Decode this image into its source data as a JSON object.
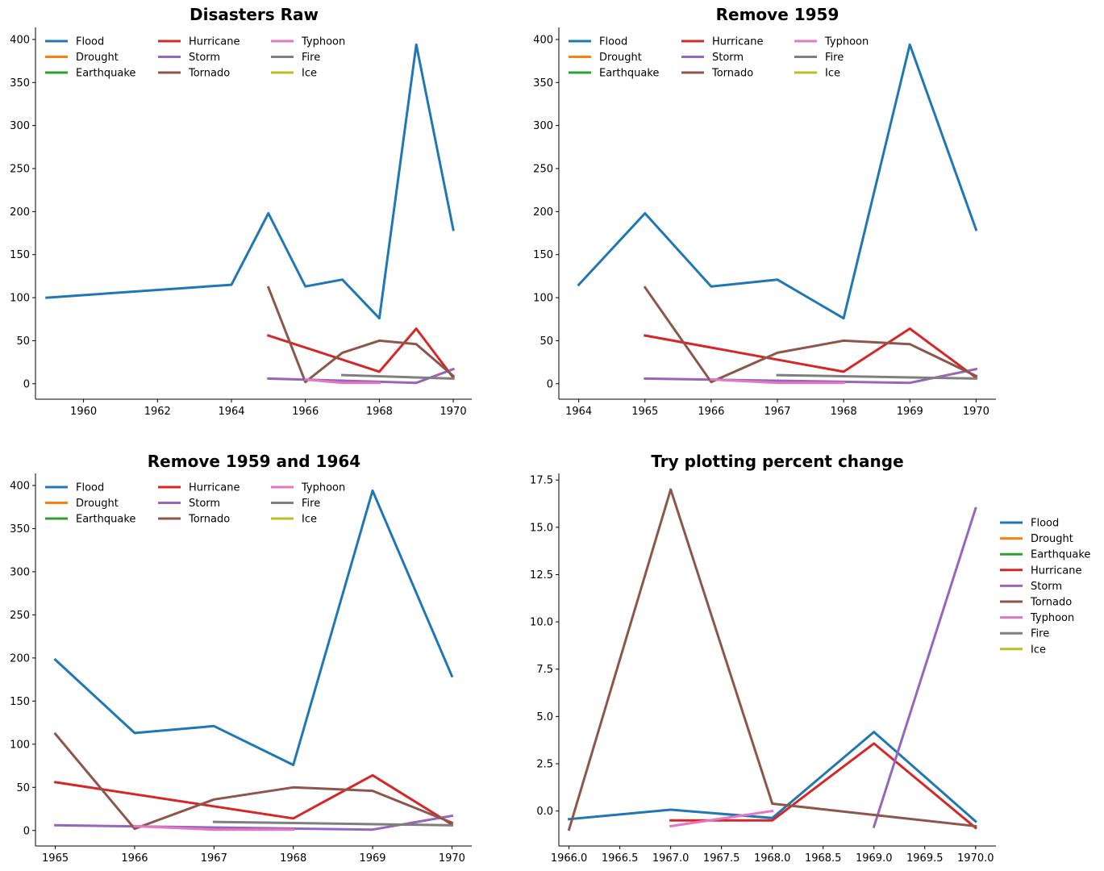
{
  "colors": {
    "Flood": "#1f77b4",
    "Drought": "#ff7f0e",
    "Earthquake": "#2ca02c",
    "Hurricane": "#d62728",
    "Storm": "#9467bd",
    "Tornado": "#8c564b",
    "Typhoon": "#e377c2",
    "Fire": "#7f7f7f",
    "Ice": "#bcbd22"
  },
  "chart_data": [
    {
      "type": "line",
      "title": "Disasters Raw",
      "xlabel": "",
      "ylabel": "",
      "xlim": [
        1958.7,
        1970.5
      ],
      "ylim": [
        -18,
        414
      ],
      "xticks": [
        1960,
        1962,
        1964,
        1966,
        1968,
        1970
      ],
      "xtick_labels": [
        "1960",
        "1962",
        "1964",
        "1966",
        "1968",
        "1970"
      ],
      "yticks": [
        0,
        50,
        100,
        150,
        200,
        250,
        300,
        350,
        400
      ],
      "ytick_labels": [
        "0",
        "50",
        "100",
        "150",
        "200",
        "250",
        "300",
        "350",
        "400"
      ],
      "legend": {
        "location": "upper-left",
        "columns": 3
      },
      "series": [
        {
          "name": "Flood",
          "points": [
            [
              1959,
              100
            ],
            [
              1964,
              115
            ],
            [
              1965,
              198
            ],
            [
              1966,
              113
            ],
            [
              1967,
              121
            ],
            [
              1968,
              76
            ],
            [
              1969,
              394
            ],
            [
              1970,
              179
            ]
          ]
        },
        {
          "name": "Drought",
          "points": []
        },
        {
          "name": "Earthquake",
          "points": []
        },
        {
          "name": "Hurricane",
          "points": [
            [
              1965,
              56
            ],
            [
              1968,
              14
            ],
            [
              1969,
              64
            ],
            [
              1970,
              7
            ]
          ]
        },
        {
          "name": "Storm",
          "points": [
            [
              1965,
              6
            ],
            [
              1969,
              1
            ],
            [
              1970,
              17
            ]
          ]
        },
        {
          "name": "Tornado",
          "points": [
            [
              1965,
              112
            ],
            [
              1966,
              2
            ],
            [
              1967,
              36
            ],
            [
              1968,
              50
            ],
            [
              1969,
              46
            ],
            [
              1970,
              9
            ]
          ]
        },
        {
          "name": "Typhoon",
          "points": [
            [
              1966,
              5
            ],
            [
              1967,
              1
            ],
            [
              1968,
              1
            ]
          ]
        },
        {
          "name": "Fire",
          "points": [
            [
              1967,
              10
            ],
            [
              1970,
              6
            ]
          ]
        },
        {
          "name": "Ice",
          "points": []
        }
      ]
    },
    {
      "type": "line",
      "title": "Remove 1959",
      "xlabel": "",
      "ylabel": "",
      "xlim": [
        1963.7,
        1970.3
      ],
      "ylim": [
        -18,
        414
      ],
      "xticks": [
        1964,
        1965,
        1966,
        1967,
        1968,
        1969,
        1970
      ],
      "xtick_labels": [
        "1964",
        "1965",
        "1966",
        "1967",
        "1968",
        "1969",
        "1970"
      ],
      "yticks": [
        0,
        50,
        100,
        150,
        200,
        250,
        300,
        350,
        400
      ],
      "ytick_labels": [
        "0",
        "50",
        "100",
        "150",
        "200",
        "250",
        "300",
        "350",
        "400"
      ],
      "legend": {
        "location": "upper-left",
        "columns": 3
      },
      "series": [
        {
          "name": "Flood",
          "points": [
            [
              1964,
              115
            ],
            [
              1965,
              198
            ],
            [
              1966,
              113
            ],
            [
              1967,
              121
            ],
            [
              1968,
              76
            ],
            [
              1969,
              394
            ],
            [
              1970,
              179
            ]
          ]
        },
        {
          "name": "Drought",
          "points": []
        },
        {
          "name": "Earthquake",
          "points": []
        },
        {
          "name": "Hurricane",
          "points": [
            [
              1965,
              56
            ],
            [
              1968,
              14
            ],
            [
              1969,
              64
            ],
            [
              1970,
              7
            ]
          ]
        },
        {
          "name": "Storm",
          "points": [
            [
              1965,
              6
            ],
            [
              1969,
              1
            ],
            [
              1970,
              17
            ]
          ]
        },
        {
          "name": "Tornado",
          "points": [
            [
              1965,
              112
            ],
            [
              1966,
              2
            ],
            [
              1967,
              36
            ],
            [
              1968,
              50
            ],
            [
              1969,
              46
            ],
            [
              1970,
              9
            ]
          ]
        },
        {
          "name": "Typhoon",
          "points": [
            [
              1966,
              5
            ],
            [
              1967,
              1
            ],
            [
              1968,
              1
            ]
          ]
        },
        {
          "name": "Fire",
          "points": [
            [
              1967,
              10
            ],
            [
              1970,
              6
            ]
          ]
        },
        {
          "name": "Ice",
          "points": []
        }
      ]
    },
    {
      "type": "line",
      "title": "Remove 1959 and 1964",
      "xlabel": "",
      "ylabel": "",
      "xlim": [
        1964.75,
        1970.25
      ],
      "ylim": [
        -18,
        414
      ],
      "xticks": [
        1965,
        1966,
        1967,
        1968,
        1969,
        1970
      ],
      "xtick_labels": [
        "1965",
        "1966",
        "1967",
        "1968",
        "1969",
        "1970"
      ],
      "yticks": [
        0,
        50,
        100,
        150,
        200,
        250,
        300,
        350,
        400
      ],
      "ytick_labels": [
        "0",
        "50",
        "100",
        "150",
        "200",
        "250",
        "300",
        "350",
        "400"
      ],
      "legend": {
        "location": "upper-left",
        "columns": 3
      },
      "series": [
        {
          "name": "Flood",
          "points": [
            [
              1965,
              198
            ],
            [
              1966,
              113
            ],
            [
              1967,
              121
            ],
            [
              1968,
              76
            ],
            [
              1969,
              394
            ],
            [
              1970,
              179
            ]
          ]
        },
        {
          "name": "Drought",
          "points": []
        },
        {
          "name": "Earthquake",
          "points": []
        },
        {
          "name": "Hurricane",
          "points": [
            [
              1965,
              56
            ],
            [
              1968,
              14
            ],
            [
              1969,
              64
            ],
            [
              1970,
              7
            ]
          ]
        },
        {
          "name": "Storm",
          "points": [
            [
              1965,
              6
            ],
            [
              1969,
              1
            ],
            [
              1970,
              17
            ]
          ]
        },
        {
          "name": "Tornado",
          "points": [
            [
              1965,
              112
            ],
            [
              1966,
              2
            ],
            [
              1967,
              36
            ],
            [
              1968,
              50
            ],
            [
              1969,
              46
            ],
            [
              1970,
              9
            ]
          ]
        },
        {
          "name": "Typhoon",
          "points": [
            [
              1966,
              5
            ],
            [
              1967,
              1
            ],
            [
              1968,
              1
            ]
          ]
        },
        {
          "name": "Fire",
          "points": [
            [
              1967,
              10
            ],
            [
              1970,
              6
            ]
          ]
        },
        {
          "name": "Ice",
          "points": []
        }
      ]
    },
    {
      "type": "line",
      "title": "Try plotting percent change",
      "xlabel": "",
      "ylabel": "",
      "xlim": [
        1965.9,
        1970.2
      ],
      "ylim": [
        -1.85,
        17.85
      ],
      "xticks": [
        1966.0,
        1966.5,
        1967.0,
        1967.5,
        1968.0,
        1968.5,
        1969.0,
        1969.5,
        1970.0
      ],
      "xtick_labels": [
        "1966.0",
        "1966.5",
        "1967.0",
        "1967.5",
        "1968.0",
        "1968.5",
        "1969.0",
        "1969.5",
        "1970.0"
      ],
      "yticks": [
        0,
        2.5,
        5,
        7.5,
        10,
        12.5,
        15,
        17.5
      ],
      "ytick_labels": [
        "0.0",
        "2.5",
        "5.0",
        "7.5",
        "10.0",
        "12.5",
        "15.0",
        "17.5"
      ],
      "legend": {
        "location": "outside-right",
        "columns": 1
      },
      "series": [
        {
          "name": "Flood",
          "points": [
            [
              1966,
              -0.43
            ],
            [
              1967,
              0.07
            ],
            [
              1968,
              -0.37
            ],
            [
              1969,
              4.18
            ],
            [
              1970,
              -0.55
            ]
          ]
        },
        {
          "name": "Drought",
          "points": []
        },
        {
          "name": "Earthquake",
          "points": []
        },
        {
          "name": "Hurricane",
          "points": [
            [
              1967,
              -0.5
            ],
            [
              1968,
              -0.5
            ],
            [
              1969,
              3.57
            ],
            [
              1970,
              -0.89
            ]
          ]
        },
        {
          "name": "Storm",
          "points": [
            [
              1969,
              -0.83
            ],
            [
              1970,
              16.0
            ]
          ]
        },
        {
          "name": "Tornado",
          "points": [
            [
              1966,
              -0.98
            ],
            [
              1967,
              17.0
            ],
            [
              1968,
              0.39
            ],
            [
              1970,
              -0.8
            ]
          ]
        },
        {
          "name": "Typhoon",
          "points": [
            [
              1967,
              -0.8
            ],
            [
              1968,
              0.0
            ]
          ]
        },
        {
          "name": "Fire",
          "points": []
        },
        {
          "name": "Ice",
          "points": []
        }
      ]
    }
  ]
}
